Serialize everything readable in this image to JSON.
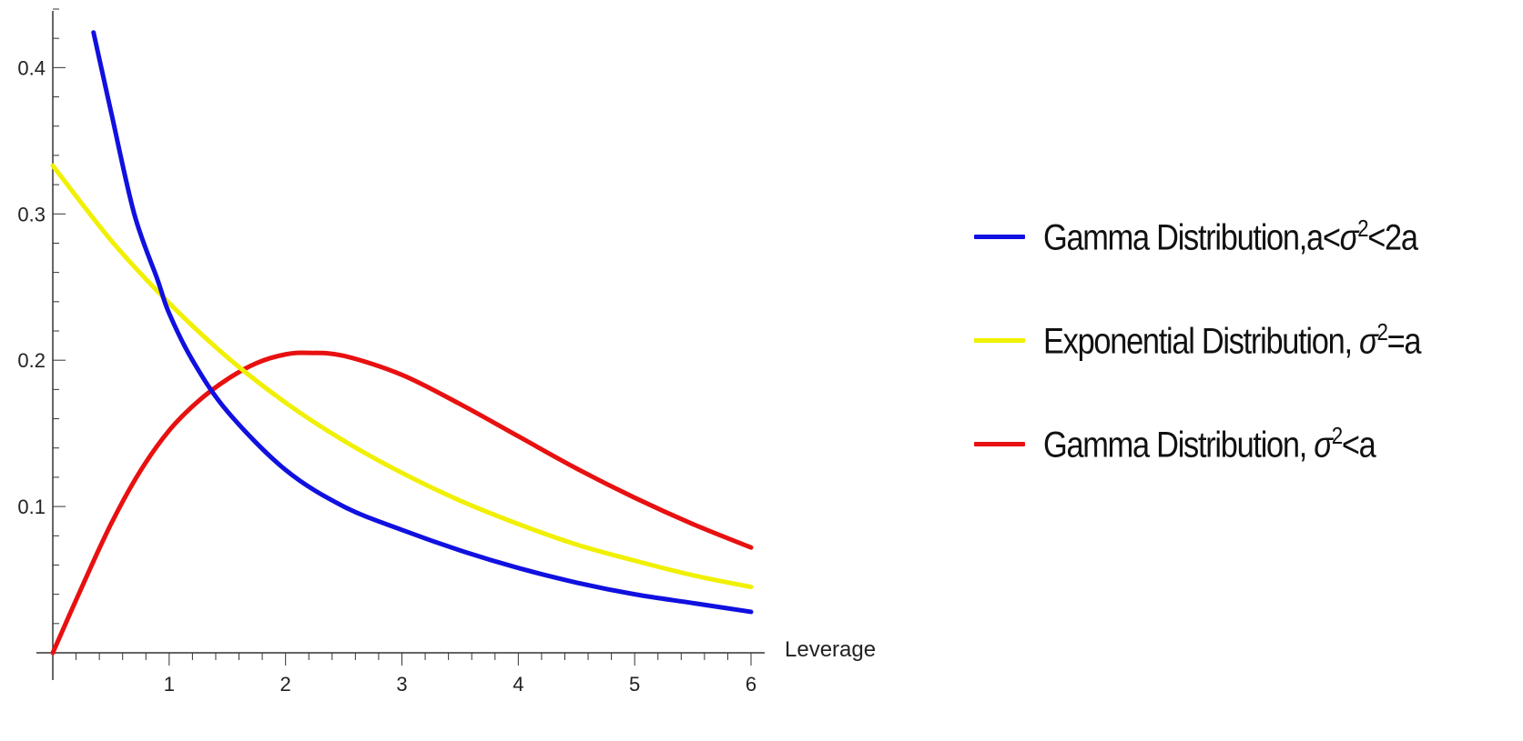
{
  "chart_data": {
    "type": "line",
    "xlabel": "Leverage",
    "ylabel": "",
    "xlim": [
      0,
      6
    ],
    "ylim": [
      0,
      0.44
    ],
    "x_ticks": [
      "1",
      "2",
      "3",
      "4",
      "5",
      "6"
    ],
    "y_ticks": [
      "0.1",
      "0.2",
      "0.3",
      "0.4"
    ],
    "legend_position": "right",
    "series": [
      {
        "name": "Gamma Distribution,a<σ²<2a",
        "color": "#1010e0",
        "x": [
          0.35,
          0.5,
          0.7,
          0.9,
          1.0,
          1.2,
          1.5,
          2.0,
          2.5,
          3.0,
          3.5,
          4.0,
          4.5,
          5.0,
          5.5,
          6.0
        ],
        "y": [
          0.424,
          0.37,
          0.3,
          0.255,
          0.232,
          0.2,
          0.165,
          0.125,
          0.1,
          0.084,
          0.07,
          0.058,
          0.048,
          0.04,
          0.034,
          0.028
        ]
      },
      {
        "name": "Exponential Distribution, σ²=a",
        "color": "#f0f000",
        "x": [
          0,
          0.5,
          1.0,
          1.5,
          2.0,
          2.5,
          3.0,
          3.5,
          4.0,
          4.5,
          5.0,
          5.5,
          6.0
        ],
        "y": [
          0.333,
          0.282,
          0.239,
          0.202,
          0.171,
          0.145,
          0.123,
          0.104,
          0.088,
          0.074,
          0.063,
          0.053,
          0.045
        ]
      },
      {
        "name": "Gamma Distribution, σ²<a",
        "color": "#e81010",
        "x": [
          0,
          0.25,
          0.5,
          0.75,
          1.0,
          1.25,
          1.5,
          1.75,
          2.0,
          2.2,
          2.5,
          3.0,
          3.5,
          4.0,
          4.5,
          5.0,
          5.5,
          6.0
        ],
        "y": [
          0,
          0.045,
          0.088,
          0.124,
          0.152,
          0.172,
          0.187,
          0.198,
          0.204,
          0.205,
          0.203,
          0.19,
          0.17,
          0.148,
          0.126,
          0.106,
          0.088,
          0.072
        ]
      }
    ]
  },
  "legend": [
    {
      "name_text": "Gamma Distribution,a<",
      "sym": "σ",
      "sup": "2",
      "rest": "<2a",
      "color": "#1010e0"
    },
    {
      "name_text": "Exponential Distribution, ",
      "sym": "σ",
      "sup": "2",
      "rest": "=a",
      "color": "#f0f000"
    },
    {
      "name_text": "Gamma Distribution, ",
      "sym": "σ",
      "sup": "2",
      "rest": "<a",
      "color": "#e81010"
    }
  ]
}
